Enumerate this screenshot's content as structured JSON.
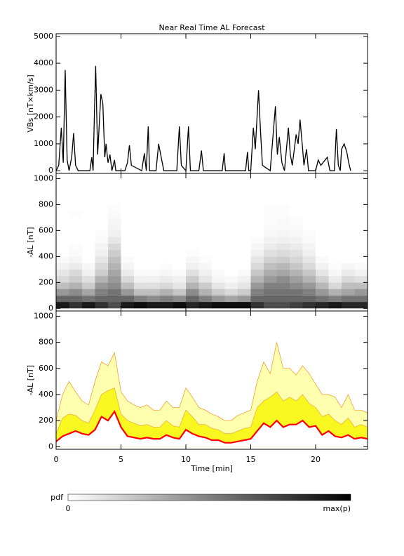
{
  "chart_data": [
    {
      "type": "line",
      "title": "Near Real Time AL Forecast",
      "ylabel": "VBs [nT×km/s]",
      "xlim": [
        0,
        24
      ],
      "ylim": [
        -100,
        5100
      ],
      "xticks": [
        0,
        5,
        10,
        15,
        20
      ],
      "xtick_labels": false,
      "yticks": [
        0,
        1000,
        2000,
        3000,
        4000,
        5000
      ],
      "color": "#000000",
      "x": [
        0,
        0.2,
        0.4,
        0.55,
        0.7,
        0.85,
        1.0,
        1.2,
        1.35,
        1.5,
        1.7,
        2.6,
        2.75,
        2.85,
        2.95,
        3.05,
        3.2,
        3.45,
        3.6,
        3.75,
        3.85,
        4.0,
        4.15,
        4.3,
        4.5,
        4.6,
        5.3,
        5.5,
        5.65,
        5.8,
        6.6,
        6.8,
        6.95,
        7.1,
        7.2,
        7.7,
        7.9,
        8.1,
        8.3,
        9.3,
        9.5,
        9.65,
        10.0,
        10.2,
        10.35,
        11.0,
        11.2,
        11.35,
        12.8,
        12.95,
        13.05,
        14.6,
        14.75,
        14.85,
        15.0,
        15.2,
        15.35,
        15.6,
        15.75,
        15.9,
        16.5,
        16.9,
        17.05,
        17.2,
        17.4,
        17.6,
        17.9,
        18.05,
        18.2,
        18.5,
        18.65,
        18.8,
        19.0,
        19.1,
        19.3,
        19.45,
        20.0,
        20.2,
        20.4,
        20.9,
        21.1,
        21.45,
        21.6,
        21.75,
        21.9,
        22.0,
        22.2,
        22.4,
        22.55,
        22.7
      ],
      "values": [
        0,
        200,
        1600,
        300,
        3750,
        400,
        0,
        500,
        1400,
        200,
        0,
        0,
        500,
        0,
        2100,
        3900,
        600,
        2850,
        2500,
        500,
        1000,
        300,
        600,
        0,
        400,
        0,
        0,
        300,
        950,
        200,
        0,
        650,
        0,
        1650,
        0,
        0,
        1000,
        500,
        0,
        0,
        1650,
        200,
        0,
        1650,
        0,
        0,
        750,
        0,
        0,
        650,
        0,
        0,
        700,
        0,
        0,
        1600,
        800,
        3000,
        1500,
        200,
        0,
        2400,
        600,
        1250,
        300,
        0,
        1600,
        600,
        200,
        1350,
        1000,
        1900,
        800,
        200,
        800,
        0,
        0,
        400,
        200,
        500,
        0,
        0,
        1550,
        200,
        0,
        800,
        1000,
        700,
        300,
        0
      ]
    },
    {
      "type": "heatmap",
      "ylabel": "-AL [nT]",
      "xlim": [
        0,
        24
      ],
      "ylim": [
        -20,
        1040
      ],
      "xticks": [
        0,
        5,
        10,
        15,
        20
      ],
      "xtick_labels": false,
      "yticks": [
        0,
        200,
        400,
        600,
        800,
        1000
      ],
      "x_bins": [
        0,
        1,
        2,
        3,
        4,
        5,
        6,
        7,
        8,
        9,
        10,
        11,
        12,
        13,
        14,
        15,
        16,
        17,
        18,
        19,
        20,
        21,
        22,
        23,
        24
      ],
      "y_bins": [
        0,
        50,
        100,
        150,
        200,
        250,
        300,
        350,
        400,
        450,
        500,
        550,
        600,
        650,
        700,
        750,
        800
      ],
      "pdf": [
        [
          0.9,
          0.6,
          0.4,
          0.25,
          0.15,
          0.1,
          0.05,
          0.02,
          0,
          0,
          0,
          0,
          0,
          0,
          0,
          0
        ],
        [
          0.8,
          0.6,
          0.45,
          0.3,
          0.2,
          0.15,
          0.08,
          0.04,
          0.02,
          0.01,
          0,
          0,
          0,
          0,
          0.01,
          0
        ],
        [
          0.9,
          0.55,
          0.35,
          0.2,
          0.12,
          0.06,
          0.03,
          0,
          0,
          0,
          0,
          0,
          0,
          0,
          0,
          0
        ],
        [
          0.8,
          0.6,
          0.5,
          0.4,
          0.3,
          0.2,
          0.15,
          0.1,
          0.06,
          0.04,
          0.02,
          0.01,
          0,
          0,
          0,
          0
        ],
        [
          0.7,
          0.6,
          0.55,
          0.45,
          0.4,
          0.35,
          0.3,
          0.25,
          0.2,
          0.15,
          0.1,
          0.06,
          0.04,
          0.03,
          0.02,
          0.01
        ],
        [
          0.9,
          0.6,
          0.4,
          0.25,
          0.15,
          0.08,
          0.04,
          0.02,
          0,
          0,
          0,
          0,
          0,
          0,
          0,
          0
        ],
        [
          0.95,
          0.5,
          0.25,
          0.12,
          0.05,
          0.02,
          0,
          0,
          0,
          0,
          0,
          0,
          0,
          0,
          0,
          0
        ],
        [
          0.9,
          0.45,
          0.25,
          0.12,
          0.06,
          0.02,
          0,
          0,
          0,
          0,
          0,
          0,
          0,
          0,
          0,
          0
        ],
        [
          0.9,
          0.5,
          0.3,
          0.15,
          0.08,
          0.03,
          0.01,
          0,
          0,
          0,
          0,
          0,
          0,
          0,
          0,
          0
        ],
        [
          0.95,
          0.45,
          0.22,
          0.1,
          0.05,
          0.02,
          0,
          0,
          0,
          0,
          0,
          0,
          0,
          0,
          0,
          0
        ],
        [
          0.85,
          0.6,
          0.45,
          0.3,
          0.2,
          0.12,
          0.06,
          0.03,
          0.01,
          0,
          0,
          0,
          0,
          0,
          0,
          0
        ],
        [
          0.9,
          0.5,
          0.3,
          0.2,
          0.1,
          0.06,
          0.03,
          0.01,
          0,
          0,
          0,
          0,
          0,
          0,
          0,
          0
        ],
        [
          0.95,
          0.4,
          0.2,
          0.1,
          0.04,
          0.02,
          0,
          0,
          0,
          0,
          0,
          0,
          0,
          0,
          0,
          0
        ],
        [
          0.95,
          0.35,
          0.15,
          0.06,
          0.02,
          0,
          0,
          0,
          0,
          0,
          0,
          0,
          0,
          0,
          0,
          0
        ],
        [
          0.95,
          0.4,
          0.2,
          0.1,
          0.05,
          0.02,
          0,
          0,
          0,
          0,
          0,
          0,
          0,
          0,
          0,
          0
        ],
        [
          0.8,
          0.6,
          0.5,
          0.4,
          0.3,
          0.22,
          0.15,
          0.1,
          0.06,
          0.03,
          0.01,
          0,
          0,
          0,
          0,
          0
        ],
        [
          0.7,
          0.6,
          0.55,
          0.5,
          0.4,
          0.32,
          0.25,
          0.18,
          0.12,
          0.08,
          0.05,
          0.03,
          0.02,
          0.01,
          0.01,
          0.01
        ],
        [
          0.7,
          0.6,
          0.55,
          0.5,
          0.45,
          0.35,
          0.28,
          0.2,
          0.14,
          0.1,
          0.06,
          0.04,
          0.02,
          0.02,
          0.01,
          0.01
        ],
        [
          0.75,
          0.6,
          0.55,
          0.45,
          0.38,
          0.3,
          0.22,
          0.16,
          0.12,
          0.08,
          0.05,
          0.03,
          0.02,
          0.01,
          0,
          0
        ],
        [
          0.8,
          0.6,
          0.5,
          0.4,
          0.3,
          0.22,
          0.15,
          0.1,
          0.06,
          0.04,
          0.02,
          0.01,
          0,
          0,
          0,
          0
        ],
        [
          0.85,
          0.55,
          0.4,
          0.28,
          0.18,
          0.1,
          0.05,
          0.02,
          0,
          0,
          0,
          0,
          0,
          0,
          0,
          0
        ],
        [
          0.9,
          0.5,
          0.3,
          0.15,
          0.08,
          0.03,
          0.01,
          0,
          0,
          0,
          0,
          0,
          0,
          0,
          0,
          0
        ],
        [
          0.85,
          0.55,
          0.35,
          0.25,
          0.15,
          0.08,
          0.03,
          0,
          0,
          0,
          0,
          0,
          0,
          0,
          0,
          0
        ],
        [
          0.85,
          0.55,
          0.4,
          0.25,
          0.12,
          0.05,
          0.02,
          0,
          0,
          0,
          0,
          0,
          0,
          0,
          0,
          0
        ]
      ],
      "colorbar": {
        "label": "pdf",
        "min_label": "0",
        "max_label": "max(p)"
      }
    },
    {
      "type": "area",
      "ylabel": "-AL [nT]",
      "xlabel": "Time [min]",
      "xlim": [
        0,
        24
      ],
      "ylim": [
        -20,
        1040
      ],
      "xticks": [
        0,
        5,
        10,
        15,
        20
      ],
      "xtick_labels": true,
      "yticks": [
        0,
        200,
        400,
        600,
        800,
        1000
      ],
      "x": [
        0,
        0.5,
        1,
        1.5,
        2,
        2.5,
        3,
        3.5,
        4,
        4.5,
        5,
        5.5,
        6,
        6.5,
        7,
        7.5,
        8,
        8.5,
        9,
        9.5,
        10,
        10.5,
        11,
        11.5,
        12,
        12.5,
        13,
        13.5,
        14,
        14.5,
        15,
        15.5,
        16,
        16.5,
        17,
        17.5,
        18,
        18.5,
        19,
        19.5,
        20,
        20.5,
        21,
        21.5,
        22,
        22.5,
        23,
        23.5,
        24
      ],
      "series": [
        {
          "fill": "#ffffb0",
          "color": "#f0a030",
          "width": 0.8,
          "values": [
            200,
            400,
            500,
            420,
            350,
            320,
            500,
            650,
            620,
            720,
            420,
            350,
            320,
            300,
            320,
            280,
            280,
            350,
            300,
            300,
            450,
            380,
            300,
            280,
            250,
            230,
            200,
            200,
            240,
            260,
            280,
            500,
            650,
            560,
            800,
            600,
            600,
            550,
            620,
            560,
            480,
            400,
            400,
            380,
            300,
            400,
            280,
            280,
            260
          ]
        },
        {
          "fill": "#f8f820",
          "color": "#f0b040",
          "width": 0.8,
          "values": [
            100,
            220,
            250,
            240,
            200,
            180,
            280,
            400,
            430,
            450,
            250,
            200,
            180,
            160,
            170,
            150,
            150,
            200,
            160,
            150,
            280,
            230,
            170,
            170,
            140,
            130,
            100,
            100,
            120,
            140,
            150,
            300,
            350,
            380,
            420,
            350,
            380,
            350,
            400,
            330,
            300,
            230,
            250,
            200,
            170,
            220,
            150,
            170,
            150
          ]
        },
        {
          "fill": "#ffffff",
          "color": "#ff0000",
          "width": 2.2,
          "values": [
            40,
            80,
            100,
            120,
            100,
            90,
            130,
            230,
            200,
            270,
            150,
            80,
            70,
            60,
            70,
            60,
            60,
            90,
            70,
            60,
            130,
            100,
            80,
            70,
            50,
            50,
            30,
            30,
            40,
            50,
            60,
            120,
            180,
            150,
            200,
            150,
            170,
            170,
            200,
            150,
            160,
            90,
            120,
            80,
            70,
            90,
            60,
            70,
            60
          ]
        }
      ]
    }
  ]
}
